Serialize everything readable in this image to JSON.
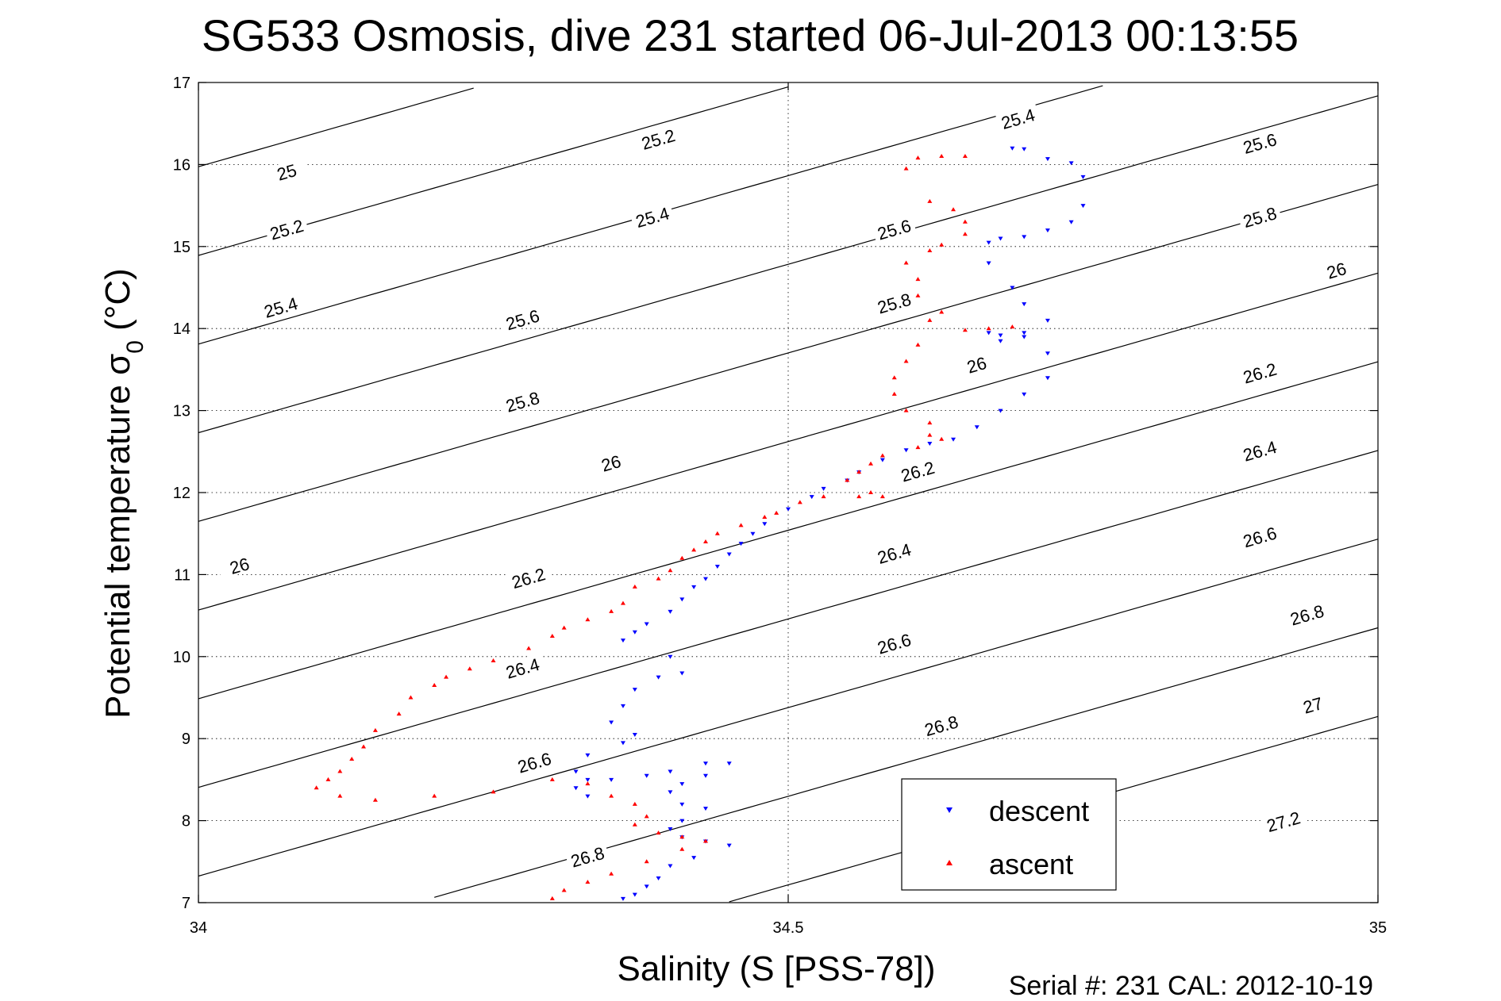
{
  "chart_data": {
    "type": "scatter",
    "title": "SG533 Osmosis, dive 231 started 06-Jul-2013 00:13:55",
    "xlabel": "Salinity (S [PSS-78])",
    "ylabel_main": "Potential temperature σ",
    "ylabel_sub": "0",
    "ylabel_unit": " (°C)",
    "footer": "Serial #: 231  CAL: 2012-10-19",
    "xlim": [
      34,
      35
    ],
    "ylim": [
      7,
      17
    ],
    "x_ticks": [
      34,
      34.5,
      35
    ],
    "x_tick_labels": [
      "34",
      "34.5",
      "35"
    ],
    "y_ticks": [
      7,
      8,
      9,
      10,
      11,
      12,
      13,
      14,
      15,
      16,
      17
    ],
    "y_tick_labels": [
      "7",
      "8",
      "9",
      "10",
      "11",
      "12",
      "13",
      "14",
      "15",
      "16",
      "17"
    ],
    "grid": true,
    "legend_position": "bottom-right",
    "contour_levels": [
      "25",
      "25.2",
      "25.4",
      "25.6",
      "25.8",
      "26",
      "26.2",
      "26.4",
      "26.6",
      "26.8",
      "27",
      "27.2"
    ],
    "contour_labels": [
      {
        "text": "25",
        "x": 34.075,
        "y": 15.9
      },
      {
        "text": "25.2",
        "x": 34.075,
        "y": 15.2
      },
      {
        "text": "25.4",
        "x": 34.07,
        "y": 14.25
      },
      {
        "text": "26",
        "x": 34.035,
        "y": 11.1
      },
      {
        "text": "25.2",
        "x": 34.39,
        "y": 16.3
      },
      {
        "text": "25.4",
        "x": 34.385,
        "y": 15.35
      },
      {
        "text": "25.6",
        "x": 34.275,
        "y": 14.1
      },
      {
        "text": "25.8",
        "x": 34.275,
        "y": 13.1
      },
      {
        "text": "26",
        "x": 34.35,
        "y": 12.35
      },
      {
        "text": "26.2",
        "x": 34.28,
        "y": 10.95
      },
      {
        "text": "26.4",
        "x": 34.275,
        "y": 9.85
      },
      {
        "text": "26.6",
        "x": 34.285,
        "y": 8.7
      },
      {
        "text": "26.8",
        "x": 34.33,
        "y": 7.55
      },
      {
        "text": "25.6",
        "x": 34.59,
        "y": 15.2
      },
      {
        "text": "25.8",
        "x": 34.59,
        "y": 14.3
      },
      {
        "text": "26",
        "x": 34.66,
        "y": 13.55
      },
      {
        "text": "26.2",
        "x": 34.61,
        "y": 12.25
      },
      {
        "text": "26.4",
        "x": 34.59,
        "y": 11.25
      },
      {
        "text": "26.6",
        "x": 34.59,
        "y": 10.15
      },
      {
        "text": "26.8",
        "x": 34.63,
        "y": 9.15
      },
      {
        "text": "25.4",
        "x": 34.695,
        "y": 16.55
      },
      {
        "text": "25.6",
        "x": 34.9,
        "y": 16.25
      },
      {
        "text": "25.8",
        "x": 34.9,
        "y": 15.35
      },
      {
        "text": "26",
        "x": 34.965,
        "y": 14.7
      },
      {
        "text": "26.2",
        "x": 34.9,
        "y": 13.45
      },
      {
        "text": "26.4",
        "x": 34.9,
        "y": 12.5
      },
      {
        "text": "26.6",
        "x": 34.9,
        "y": 11.45
      },
      {
        "text": "26.8",
        "x": 34.94,
        "y": 10.5
      },
      {
        "text": "27",
        "x": 34.945,
        "y": 9.4
      },
      {
        "text": "27.2",
        "x": 34.92,
        "y": 7.98
      }
    ],
    "series": [
      {
        "name": "descent",
        "color": "#0000ff",
        "marker": "triangle-down",
        "points": [
          [
            34.69,
            16.2
          ],
          [
            34.7,
            16.19
          ],
          [
            34.72,
            16.07
          ],
          [
            34.74,
            16.02
          ],
          [
            34.75,
            15.85
          ],
          [
            34.75,
            15.5
          ],
          [
            34.74,
            15.3
          ],
          [
            34.72,
            15.2
          ],
          [
            34.7,
            15.12
          ],
          [
            34.68,
            15.1
          ],
          [
            34.67,
            15.05
          ],
          [
            34.67,
            14.8
          ],
          [
            34.69,
            14.5
          ],
          [
            34.7,
            14.3
          ],
          [
            34.72,
            14.1
          ],
          [
            34.7,
            13.95
          ],
          [
            34.68,
            13.92
          ],
          [
            34.67,
            13.95
          ],
          [
            34.68,
            13.85
          ],
          [
            34.7,
            13.9
          ],
          [
            34.72,
            13.7
          ],
          [
            34.72,
            13.4
          ],
          [
            34.7,
            13.2
          ],
          [
            34.68,
            13.0
          ],
          [
            34.66,
            12.8
          ],
          [
            34.64,
            12.65
          ],
          [
            34.62,
            12.6
          ],
          [
            34.6,
            12.52
          ],
          [
            34.58,
            12.4
          ],
          [
            34.56,
            12.25
          ],
          [
            34.55,
            12.15
          ],
          [
            34.53,
            12.05
          ],
          [
            34.52,
            11.95
          ],
          [
            34.5,
            11.8
          ],
          [
            34.48,
            11.62
          ],
          [
            34.47,
            11.5
          ],
          [
            34.46,
            11.38
          ],
          [
            34.45,
            11.25
          ],
          [
            34.44,
            11.1
          ],
          [
            34.43,
            10.95
          ],
          [
            34.42,
            10.85
          ],
          [
            34.41,
            10.7
          ],
          [
            34.4,
            10.55
          ],
          [
            34.38,
            10.4
          ],
          [
            34.37,
            10.3
          ],
          [
            34.36,
            10.2
          ],
          [
            34.4,
            10.0
          ],
          [
            34.41,
            9.8
          ],
          [
            34.39,
            9.75
          ],
          [
            34.37,
            9.6
          ],
          [
            34.36,
            9.4
          ],
          [
            34.35,
            9.2
          ],
          [
            34.37,
            9.05
          ],
          [
            34.36,
            8.95
          ],
          [
            34.33,
            8.8
          ],
          [
            34.32,
            8.6
          ],
          [
            34.33,
            8.5
          ],
          [
            34.32,
            8.4
          ],
          [
            34.33,
            8.3
          ],
          [
            34.35,
            8.5
          ],
          [
            34.38,
            8.55
          ],
          [
            34.4,
            8.6
          ],
          [
            34.43,
            8.7
          ],
          [
            34.45,
            8.7
          ],
          [
            34.43,
            8.55
          ],
          [
            34.41,
            8.45
          ],
          [
            34.4,
            8.35
          ],
          [
            34.41,
            8.2
          ],
          [
            34.43,
            8.15
          ],
          [
            34.41,
            8.0
          ],
          [
            34.4,
            7.9
          ],
          [
            34.41,
            7.8
          ],
          [
            34.43,
            7.75
          ],
          [
            34.45,
            7.7
          ],
          [
            34.42,
            7.55
          ],
          [
            34.4,
            7.45
          ],
          [
            34.39,
            7.3
          ],
          [
            34.38,
            7.2
          ],
          [
            34.37,
            7.1
          ],
          [
            34.36,
            7.05
          ]
        ]
      },
      {
        "name": "ascent",
        "color": "#ff0000",
        "marker": "triangle-up",
        "points": [
          [
            34.65,
            16.1
          ],
          [
            34.63,
            16.1
          ],
          [
            34.61,
            16.08
          ],
          [
            34.6,
            15.95
          ],
          [
            34.62,
            15.55
          ],
          [
            34.64,
            15.45
          ],
          [
            34.65,
            15.3
          ],
          [
            34.65,
            15.15
          ],
          [
            34.63,
            15.02
          ],
          [
            34.62,
            14.95
          ],
          [
            34.6,
            14.8
          ],
          [
            34.61,
            14.6
          ],
          [
            34.61,
            14.4
          ],
          [
            34.63,
            14.2
          ],
          [
            34.62,
            14.1
          ],
          [
            34.65,
            13.98
          ],
          [
            34.67,
            14.0
          ],
          [
            34.69,
            14.02
          ],
          [
            34.61,
            13.8
          ],
          [
            34.6,
            13.6
          ],
          [
            34.59,
            13.4
          ],
          [
            34.59,
            13.2
          ],
          [
            34.6,
            13.0
          ],
          [
            34.62,
            12.85
          ],
          [
            34.62,
            12.7
          ],
          [
            34.63,
            12.65
          ],
          [
            34.61,
            12.55
          ],
          [
            34.58,
            12.45
          ],
          [
            34.57,
            12.35
          ],
          [
            34.56,
            12.25
          ],
          [
            34.55,
            12.15
          ],
          [
            34.57,
            12.0
          ],
          [
            34.58,
            11.95
          ],
          [
            34.56,
            11.95
          ],
          [
            34.53,
            11.95
          ],
          [
            34.51,
            11.88
          ],
          [
            34.49,
            11.75
          ],
          [
            34.48,
            11.7
          ],
          [
            34.46,
            11.6
          ],
          [
            34.44,
            11.5
          ],
          [
            34.43,
            11.4
          ],
          [
            34.42,
            11.3
          ],
          [
            34.41,
            11.2
          ],
          [
            34.4,
            11.05
          ],
          [
            34.39,
            10.95
          ],
          [
            34.37,
            10.85
          ],
          [
            34.36,
            10.65
          ],
          [
            34.35,
            10.55
          ],
          [
            34.33,
            10.45
          ],
          [
            34.31,
            10.35
          ],
          [
            34.3,
            10.25
          ],
          [
            34.28,
            10.1
          ],
          [
            34.25,
            9.95
          ],
          [
            34.23,
            9.85
          ],
          [
            34.21,
            9.75
          ],
          [
            34.2,
            9.65
          ],
          [
            34.18,
            9.5
          ],
          [
            34.17,
            9.3
          ],
          [
            34.15,
            9.1
          ],
          [
            34.14,
            8.9
          ],
          [
            34.13,
            8.75
          ],
          [
            34.12,
            8.6
          ],
          [
            34.11,
            8.5
          ],
          [
            34.1,
            8.4
          ],
          [
            34.12,
            8.3
          ],
          [
            34.15,
            8.25
          ],
          [
            34.2,
            8.3
          ],
          [
            34.25,
            8.35
          ],
          [
            34.3,
            8.5
          ],
          [
            34.33,
            8.45
          ],
          [
            34.35,
            8.3
          ],
          [
            34.37,
            8.2
          ],
          [
            34.38,
            8.05
          ],
          [
            34.37,
            7.95
          ],
          [
            34.39,
            7.85
          ],
          [
            34.41,
            7.8
          ],
          [
            34.43,
            7.75
          ],
          [
            34.41,
            7.65
          ],
          [
            34.38,
            7.5
          ],
          [
            34.35,
            7.35
          ],
          [
            34.33,
            7.25
          ],
          [
            34.31,
            7.15
          ],
          [
            34.3,
            7.05
          ]
        ]
      }
    ]
  }
}
